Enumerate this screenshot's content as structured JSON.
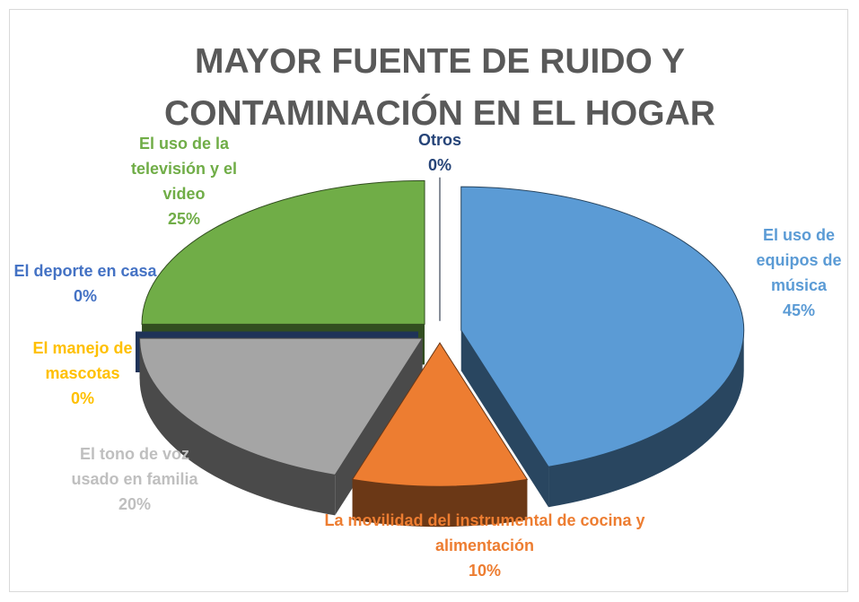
{
  "chart_data": {
    "type": "pie",
    "title": "MAYOR FUENTE DE RUIDO Y CONTAMINACIÓN EN EL HOGAR",
    "categories": [
      "El uso de equipos de música",
      "La movilidad del instrumental de cocina y alimentación",
      "El tono de voz usado en familia",
      "El manejo de mascotas",
      "El deporte en casa",
      "El uso de la televisión y el video",
      "Otros"
    ],
    "values": [
      45,
      10,
      20,
      0,
      0,
      25,
      0
    ],
    "value_labels": [
      "45%",
      "10%",
      "20%",
      "0%",
      "0%",
      "25%",
      "0%"
    ],
    "colors": [
      "#5b9bd5",
      "#ed7d31",
      "#a5a5a5",
      "#ffc000",
      "#4472c4",
      "#70ad47",
      "#264478"
    ]
  }
}
